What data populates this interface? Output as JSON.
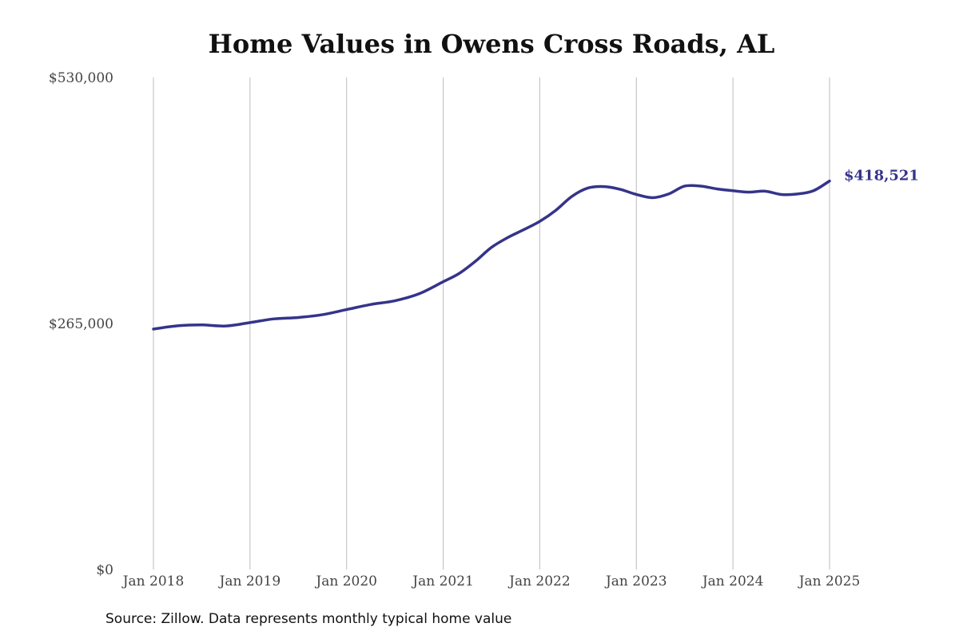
{
  "page": {
    "source": "Source: Zillow. Data represents monthly typical home value"
  },
  "chart_data": {
    "type": "line",
    "title": "Home Values in Owens Cross Roads, AL",
    "xlabel": "",
    "ylabel": "",
    "ylim": [
      0,
      530000
    ],
    "xlim": [
      "2018-01",
      "2025-01"
    ],
    "grid": {
      "vertical": true,
      "horizontal": false
    },
    "line_color": "#35348a",
    "yticks": [
      {
        "value": 0,
        "label": "$0"
      },
      {
        "value": 265000,
        "label": "$265,000"
      },
      {
        "value": 530000,
        "label": "$530,000"
      }
    ],
    "xticks": [
      {
        "value": "2018-01",
        "label": "Jan 2018"
      },
      {
        "value": "2019-01",
        "label": "Jan 2019"
      },
      {
        "value": "2020-01",
        "label": "Jan 2020"
      },
      {
        "value": "2021-01",
        "label": "Jan 2021"
      },
      {
        "value": "2022-01",
        "label": "Jan 2022"
      },
      {
        "value": "2023-01",
        "label": "Jan 2023"
      },
      {
        "value": "2024-01",
        "label": "Jan 2024"
      },
      {
        "value": "2025-01",
        "label": "Jan 2025"
      }
    ],
    "end_label": "$418,521",
    "series": [
      {
        "x": [
          "2018-01",
          "2018-04",
          "2018-07",
          "2018-10",
          "2019-01",
          "2019-04",
          "2019-07",
          "2019-10",
          "2020-01",
          "2020-04",
          "2020-07",
          "2020-10",
          "2021-01",
          "2021-03",
          "2021-05",
          "2021-07",
          "2021-09",
          "2021-11",
          "2022-01",
          "2022-03",
          "2022-05",
          "2022-07",
          "2022-09",
          "2022-11",
          "2023-01",
          "2023-03",
          "2023-05",
          "2023-07",
          "2023-09",
          "2023-11",
          "2024-01",
          "2024-03",
          "2024-05",
          "2024-07",
          "2024-09",
          "2024-11",
          "2025-01"
        ],
        "values": [
          259000,
          262500,
          263500,
          262300,
          266000,
          270000,
          271500,
          274500,
          280000,
          285500,
          289500,
          297000,
          310000,
          319000,
          332000,
          347000,
          357500,
          366000,
          375000,
          387000,
          402000,
          411000,
          412500,
          409500,
          404000,
          400500,
          404500,
          413000,
          413000,
          410000,
          408000,
          406500,
          407500,
          404000,
          404500,
          408000,
          418521
        ]
      }
    ]
  }
}
